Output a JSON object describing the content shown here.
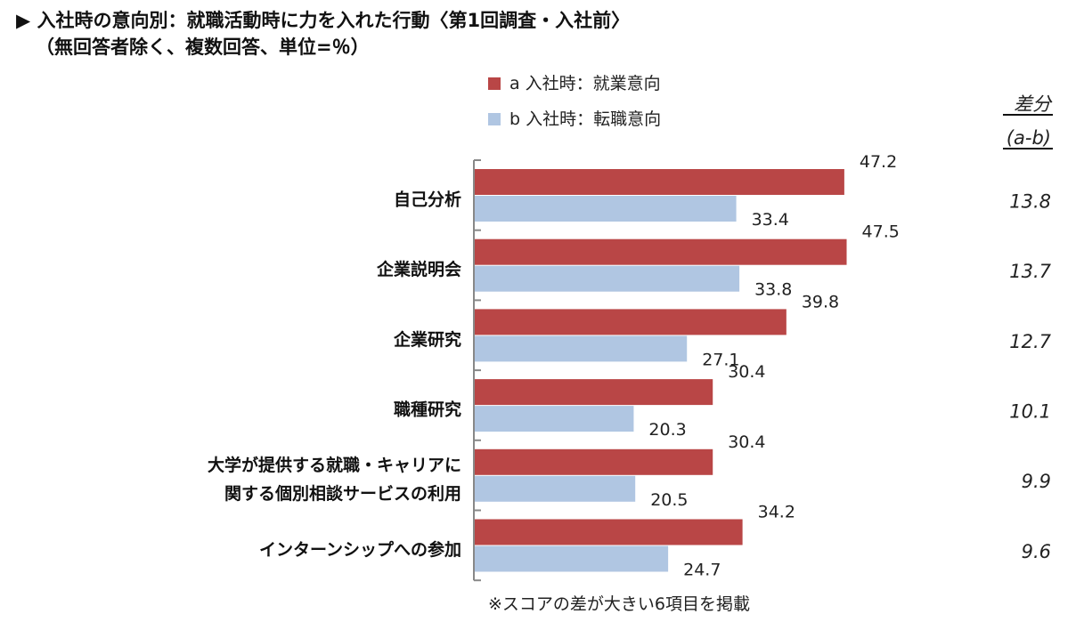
{
  "title_line1": "▶ 入社時の意向別：就職活動時に力を入れた行動〈第1回調査・入社前〉",
  "title_line2": "（無回答者除く、複数回答、単位=％）",
  "note": "※スコアの差が大きい6項目を掲載",
  "chart_data": {
    "type": "bar",
    "orientation": "horizontal",
    "categories": [
      [
        "自己分析"
      ],
      [
        "企業説明会"
      ],
      [
        "企業研究"
      ],
      [
        "職種研究"
      ],
      [
        "大学が提供する就職・キャリアに",
        "関する個別相談サービスの利用"
      ],
      [
        "インターンシップへの参加"
      ]
    ],
    "series": [
      {
        "name": "a 入社時：就業意向",
        "color": "#b94646",
        "values": [
          47.2,
          47.5,
          39.8,
          30.4,
          30.4,
          34.2
        ]
      },
      {
        "name": "b 入社時：転職意向",
        "color": "#b0c6e2",
        "values": [
          33.4,
          33.8,
          27.1,
          20.3,
          20.5,
          24.7
        ]
      }
    ],
    "difference_header": [
      "差分",
      "(a-b)"
    ],
    "difference": [
      "13.8",
      "13.7",
      "12.7",
      "10.1",
      "9.9",
      "9.6"
    ],
    "legend_position": "top",
    "grid": false
  }
}
